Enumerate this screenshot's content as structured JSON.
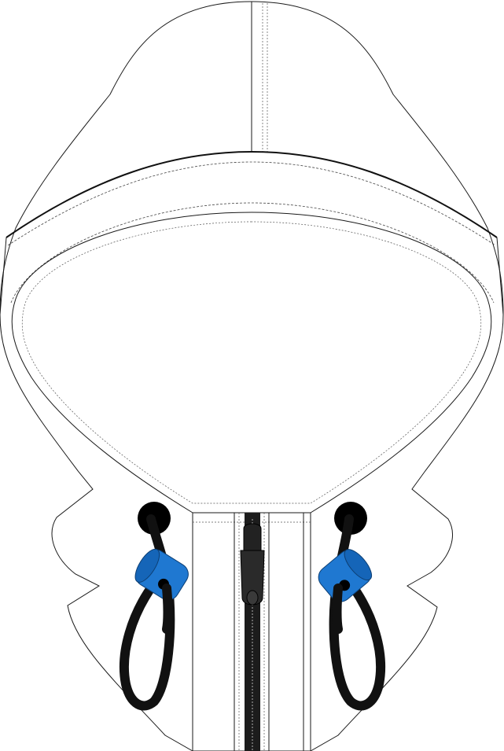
{
  "colors": {
    "outline": "#1a1a1a",
    "fabric": "#ffffff",
    "cord": "#111111",
    "toggle": "#1f78d1",
    "toggle_shade": "#1565b8",
    "zipper": "#1c1c1c",
    "grommet": "#000000"
  },
  "parts": {
    "hood": "hood-shell-icon",
    "brim": "hood-brim-icon",
    "placket": "zipper-placket-icon",
    "zipper": "zipper-icon",
    "cord_locks": "cord-lock-icon",
    "drawcords": "drawcord-icon",
    "eyelets": "eyelet-icon"
  }
}
